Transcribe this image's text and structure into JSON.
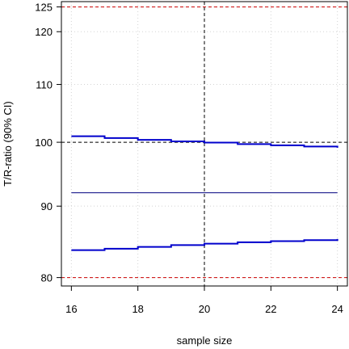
{
  "chart_data": {
    "type": "line",
    "xlabel": "sample size",
    "ylabel": "T/R-ratio  (90% CI)",
    "xlim": [
      15.7,
      24.3
    ],
    "ylim": [
      78.9,
      126.1
    ],
    "log_y": true,
    "grid": true,
    "x_ticks": [
      16,
      18,
      20,
      22,
      24
    ],
    "y_ticks": [
      80,
      90,
      100,
      110,
      120,
      125
    ],
    "x": [
      16,
      17,
      18,
      19,
      20,
      21,
      22,
      23,
      24
    ],
    "series": [
      {
        "role": "upper-ci",
        "color": "#0000cc",
        "values": [
          101.0,
          100.7,
          100.4,
          100.15,
          99.95,
          99.7,
          99.5,
          99.3,
          99.1
        ]
      },
      {
        "role": "lower-ci",
        "color": "#0000cc",
        "values": [
          83.7,
          83.9,
          84.15,
          84.4,
          84.6,
          84.8,
          84.95,
          85.1,
          85.25
        ]
      },
      {
        "role": "point-estimate",
        "color": "#000080",
        "values": [
          92,
          92,
          92,
          92,
          92,
          92,
          92,
          92,
          92
        ]
      }
    ],
    "reference_lines": {
      "h_limits": [
        80,
        125
      ],
      "h_limits_color": "#cc0000",
      "h_ref": 100,
      "v_ref": 20
    }
  }
}
